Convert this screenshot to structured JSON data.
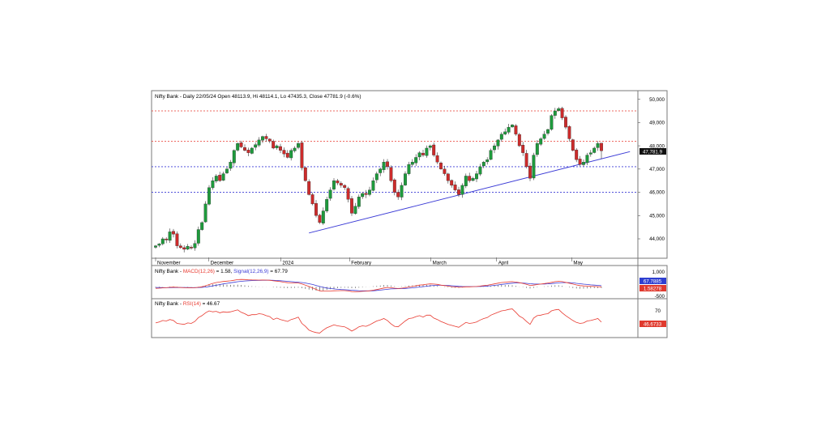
{
  "header": {
    "title": "Nifty Bank - Daily 22/05/24 Open 48113.9, Hi 48114.1, Lo 47435.3, Close 47781.9 (-0.6%)"
  },
  "price_panel": {
    "ylim": [
      43200,
      50300
    ],
    "y_ticks": [
      "44,000",
      "45,000",
      "46,000",
      "47,000",
      "48,000",
      "49,000",
      "50,000"
    ],
    "last_price_label": "47,781.9",
    "month_labels": [
      "November",
      "December",
      "2024",
      "February",
      "March",
      "April",
      "May"
    ],
    "horizontal_levels": [
      {
        "value": 49500,
        "color": "#e8392f"
      },
      {
        "value": 48200,
        "color": "#e8392f"
      },
      {
        "value": 47100,
        "color": "#3b3bd6"
      },
      {
        "value": 46000,
        "color": "#3b3bd6"
      }
    ],
    "trendline": {
      "start": {
        "index": 43,
        "value": 44250
      },
      "end": {
        "index": 133,
        "value": 47750
      },
      "color": "#3b3bd6"
    },
    "colors": {
      "up": "#1e9a3c",
      "down": "#cc2b2b",
      "wick": "#333333"
    }
  },
  "macd_panel": {
    "label_prefix": "Nifty Bank - ",
    "macd_label": "MACD(12,26)",
    "macd_value": " = 1.58, ",
    "signal_label": "Signal(12,26,9)",
    "signal_value": " = 67.79",
    "y_ticks": [
      "1,000",
      "500",
      "-500"
    ],
    "signal_badge": "67.7885",
    "macd_badge": "1.58278",
    "colors": {
      "macd": "#e8392f",
      "signal": "#3b3bd6",
      "hist": "#555555"
    }
  },
  "rsi_panel": {
    "label_prefix": "Nifty Bank - ",
    "rsi_label": "RSI(14)",
    "rsi_value": " = 46.67",
    "y_ticks": [
      "70"
    ],
    "badge": "46.6733",
    "color": "#e8392f"
  },
  "chart_data": {
    "type": "candlestick",
    "title": "Nifty Bank - Daily 22/05/24 Open 48113.9, Hi 48114.1, Lo 47435.3, Close 47781.9 (-0.6%)",
    "ylim": [
      43200,
      50300
    ],
    "last_bar": {
      "open": 48113.9,
      "high": 48114.1,
      "low": 47435.3,
      "close": 47781.9,
      "change_pct": -0.6
    },
    "closes": [
      43700,
      43780,
      44000,
      43950,
      44300,
      44200,
      43700,
      43620,
      43550,
      43680,
      43600,
      43800,
      44400,
      44700,
      45500,
      46200,
      46500,
      46700,
      46500,
      46800,
      47000,
      47300,
      47800,
      48100,
      47950,
      47800,
      47700,
      47900,
      48050,
      48250,
      48400,
      48300,
      48200,
      47900,
      48000,
      47800,
      47650,
      47500,
      47800,
      47900,
      48100,
      47050,
      46500,
      45900,
      45500,
      45000,
      44700,
      45200,
      45700,
      46100,
      46500,
      46400,
      46300,
      46200,
      45700,
      45100,
      45400,
      45800,
      45950,
      45900,
      46100,
      46500,
      46800,
      47000,
      47300,
      47100,
      46500,
      46000,
      45800,
      46300,
      46800,
      47200,
      47300,
      47500,
      47700,
      47600,
      47900,
      48000,
      47600,
      47300,
      47000,
      46800,
      46500,
      46300,
      46100,
      45900,
      46300,
      46700,
      46500,
      46600,
      46800,
      47100,
      47300,
      47400,
      47800,
      48000,
      48250,
      48500,
      48600,
      48800,
      48900,
      48500,
      48000,
      47700,
      47100,
      46600,
      47600,
      48100,
      48300,
      48500,
      48700,
      49300,
      49500,
      49600,
      49200,
      48800,
      48300,
      47800,
      47400,
      47200,
      47300,
      47600,
      47700,
      47900,
      48100,
      47782
    ],
    "macd": [
      -90,
      -80,
      -60,
      -50,
      -30,
      -20,
      -30,
      -40,
      -50,
      -55,
      -55,
      -50,
      -30,
      0,
      60,
      130,
      200,
      250,
      280,
      310,
      330,
      350,
      380,
      420,
      430,
      425,
      410,
      400,
      395,
      390,
      395,
      390,
      380,
      350,
      330,
      300,
      270,
      240,
      230,
      220,
      220,
      170,
      100,
      20,
      -60,
      -150,
      -230,
      -250,
      -250,
      -240,
      -230,
      -225,
      -220,
      -220,
      -240,
      -280,
      -290,
      -280,
      -265,
      -250,
      -230,
      -200,
      -160,
      -120,
      -70,
      -40,
      -50,
      -80,
      -100,
      -80,
      -50,
      -10,
      20,
      60,
      100,
      120,
      150,
      170,
      160,
      140,
      100,
      70,
      40,
      10,
      -10,
      -30,
      -20,
      0,
      0,
      10,
      20,
      40,
      70,
      90,
      130,
      170,
      210,
      250,
      270,
      290,
      300,
      280,
      240,
      200,
      140,
      80,
      100,
      130,
      160,
      190,
      220,
      260,
      300,
      320,
      300,
      260,
      210,
      160,
      110,
      70,
      50,
      40,
      30,
      20,
      10,
      2
    ],
    "signal": [
      -40,
      -45,
      -48,
      -50,
      -48,
      -45,
      -42,
      -42,
      -43,
      -45,
      -46,
      -47,
      -44,
      -35,
      -15,
      15,
      50,
      90,
      130,
      170,
      205,
      235,
      265,
      295,
      320,
      340,
      355,
      365,
      370,
      375,
      380,
      382,
      383,
      378,
      370,
      355,
      340,
      320,
      300,
      285,
      270,
      250,
      220,
      180,
      135,
      80,
      20,
      -30,
      -70,
      -100,
      -125,
      -145,
      -160,
      -170,
      -185,
      -200,
      -215,
      -228,
      -235,
      -238,
      -237,
      -230,
      -215,
      -195,
      -170,
      -145,
      -125,
      -115,
      -110,
      -105,
      -95,
      -80,
      -60,
      -40,
      -15,
      10,
      35,
      60,
      78,
      88,
      90,
      85,
      75,
      60,
      45,
      30,
      20,
      15,
      12,
      12,
      14,
      20,
      30,
      45,
      60,
      85,
      110,
      140,
      165,
      190,
      210,
      225,
      228,
      222,
      205,
      180,
      165,
      158,
      158,
      165,
      175,
      190,
      210,
      230,
      245,
      250,
      245,
      230,
      205,
      180,
      155,
      135,
      115,
      98,
      85,
      68
    ],
    "rsi": [
      45,
      47,
      50,
      49,
      52,
      50,
      44,
      43,
      42,
      45,
      44,
      48,
      56,
      60,
      66,
      70,
      68,
      69,
      66,
      68,
      67,
      68,
      70,
      72,
      67,
      64,
      60,
      62,
      62,
      64,
      63,
      60,
      58,
      52,
      55,
      52,
      50,
      48,
      52,
      54,
      57,
      44,
      38,
      30,
      27,
      25,
      24,
      30,
      35,
      38,
      41,
      39,
      38,
      37,
      33,
      28,
      32,
      37,
      39,
      38,
      41,
      45,
      49,
      51,
      54,
      50,
      43,
      38,
      37,
      43,
      49,
      54,
      55,
      58,
      60,
      57,
      61,
      61,
      55,
      52,
      48,
      45,
      42,
      40,
      38,
      36,
      41,
      46,
      44,
      45,
      47,
      51,
      54,
      56,
      61,
      64,
      67,
      70,
      71,
      73,
      74,
      67,
      59,
      55,
      48,
      42,
      55,
      60,
      61,
      63,
      64,
      70,
      72,
      73,
      66,
      60,
      55,
      50,
      46,
      44,
      45,
      49,
      50,
      52,
      54,
      46.67
    ]
  }
}
